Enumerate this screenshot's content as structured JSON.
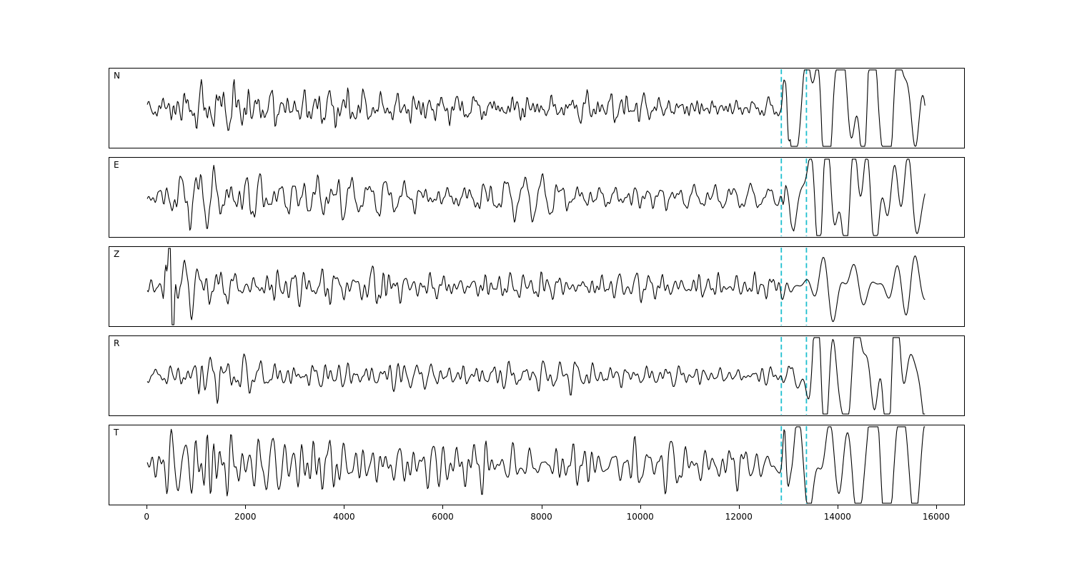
{
  "chart_data": {
    "type": "line",
    "title": "",
    "xlabel": "",
    "ylabel": "",
    "grid": false,
    "legend": null,
    "xlim": [
      -770,
      16580
    ],
    "x_ticks": [
      0,
      2000,
      4000,
      6000,
      8000,
      10000,
      12000,
      14000,
      16000
    ],
    "trace_x_range": [
      0,
      15800
    ],
    "trace_color": "#000000",
    "marker_lines": {
      "color": "#1fbfcf",
      "style": "dashed",
      "x_values": [
        12870,
        13380
      ]
    },
    "panels": [
      {
        "label": "N",
        "seed": 3,
        "envelope": [
          [
            0,
            0.1
          ],
          [
            400,
            0.16
          ],
          [
            900,
            0.26
          ],
          [
            1400,
            0.3
          ],
          [
            1900,
            0.22
          ],
          [
            3000,
            0.18
          ],
          [
            3500,
            0.24
          ],
          [
            4500,
            0.18
          ],
          [
            6000,
            0.18
          ],
          [
            7500,
            0.16
          ],
          [
            9000,
            0.16
          ],
          [
            10500,
            0.14
          ],
          [
            11800,
            0.12
          ],
          [
            12600,
            0.1
          ],
          [
            12870,
            0.1
          ],
          [
            12950,
            0.55
          ],
          [
            13200,
            0.45
          ],
          [
            13500,
            0.6
          ],
          [
            13800,
            0.9
          ],
          [
            14300,
            0.75
          ],
          [
            14800,
            0.85
          ],
          [
            15300,
            0.6
          ],
          [
            15800,
            0.45
          ]
        ]
      },
      {
        "label": "E",
        "seed": 7,
        "envelope": [
          [
            0,
            0.1
          ],
          [
            400,
            0.2
          ],
          [
            800,
            0.3
          ],
          [
            1500,
            0.32
          ],
          [
            2000,
            0.26
          ],
          [
            2600,
            0.2
          ],
          [
            3400,
            0.26
          ],
          [
            4200,
            0.2
          ],
          [
            5500,
            0.18
          ],
          [
            7000,
            0.2
          ],
          [
            8500,
            0.16
          ],
          [
            10000,
            0.16
          ],
          [
            11500,
            0.12
          ],
          [
            12600,
            0.1
          ],
          [
            12870,
            0.1
          ],
          [
            12950,
            0.5
          ],
          [
            13250,
            0.4
          ],
          [
            13600,
            0.8
          ],
          [
            14100,
            0.65
          ],
          [
            14700,
            0.55
          ],
          [
            15200,
            0.75
          ],
          [
            15800,
            0.55
          ]
        ]
      },
      {
        "label": "Z",
        "seed": 11,
        "envelope": [
          [
            0,
            0.08
          ],
          [
            300,
            0.12
          ],
          [
            400,
            0.95
          ],
          [
            480,
            0.8
          ],
          [
            600,
            0.45
          ],
          [
            900,
            0.3
          ],
          [
            1300,
            0.22
          ],
          [
            2000,
            0.18
          ],
          [
            3000,
            0.2
          ],
          [
            4200,
            0.16
          ],
          [
            5000,
            0.28
          ],
          [
            5600,
            0.18
          ],
          [
            7000,
            0.16
          ],
          [
            8500,
            0.14
          ],
          [
            10000,
            0.16
          ],
          [
            11500,
            0.14
          ],
          [
            12800,
            0.14
          ],
          [
            13100,
            0.18
          ],
          [
            13400,
            0.3
          ],
          [
            13900,
            0.38
          ],
          [
            14500,
            0.35
          ],
          [
            15000,
            0.42
          ],
          [
            15500,
            0.38
          ],
          [
            15800,
            0.25
          ]
        ]
      },
      {
        "label": "R",
        "seed": 5,
        "envelope": [
          [
            0,
            0.08
          ],
          [
            500,
            0.14
          ],
          [
            1000,
            0.22
          ],
          [
            1500,
            0.26
          ],
          [
            2000,
            0.2
          ],
          [
            3000,
            0.16
          ],
          [
            4000,
            0.18
          ],
          [
            5500,
            0.14
          ],
          [
            7000,
            0.16
          ],
          [
            8500,
            0.14
          ],
          [
            10000,
            0.14
          ],
          [
            11500,
            0.1
          ],
          [
            12600,
            0.09
          ],
          [
            12870,
            0.09
          ],
          [
            12950,
            0.5
          ],
          [
            13250,
            0.42
          ],
          [
            13600,
            0.7
          ],
          [
            14000,
            0.85
          ],
          [
            14500,
            0.7
          ],
          [
            15000,
            0.75
          ],
          [
            15400,
            0.55
          ],
          [
            15800,
            0.4
          ]
        ]
      },
      {
        "label": "T",
        "seed": 13,
        "envelope": [
          [
            0,
            0.14
          ],
          [
            400,
            0.3
          ],
          [
            800,
            0.42
          ],
          [
            1200,
            0.46
          ],
          [
            1600,
            0.42
          ],
          [
            2200,
            0.34
          ],
          [
            3000,
            0.3
          ],
          [
            3800,
            0.34
          ],
          [
            4600,
            0.28
          ],
          [
            5500,
            0.24
          ],
          [
            6500,
            0.28
          ],
          [
            7500,
            0.24
          ],
          [
            8500,
            0.22
          ],
          [
            9500,
            0.24
          ],
          [
            10500,
            0.22
          ],
          [
            11500,
            0.18
          ],
          [
            12600,
            0.16
          ],
          [
            12870,
            0.16
          ],
          [
            12950,
            0.55
          ],
          [
            13300,
            0.5
          ],
          [
            13700,
            0.85
          ],
          [
            14200,
            0.75
          ],
          [
            14700,
            0.9
          ],
          [
            15200,
            0.7
          ],
          [
            15800,
            0.55
          ]
        ]
      }
    ]
  }
}
